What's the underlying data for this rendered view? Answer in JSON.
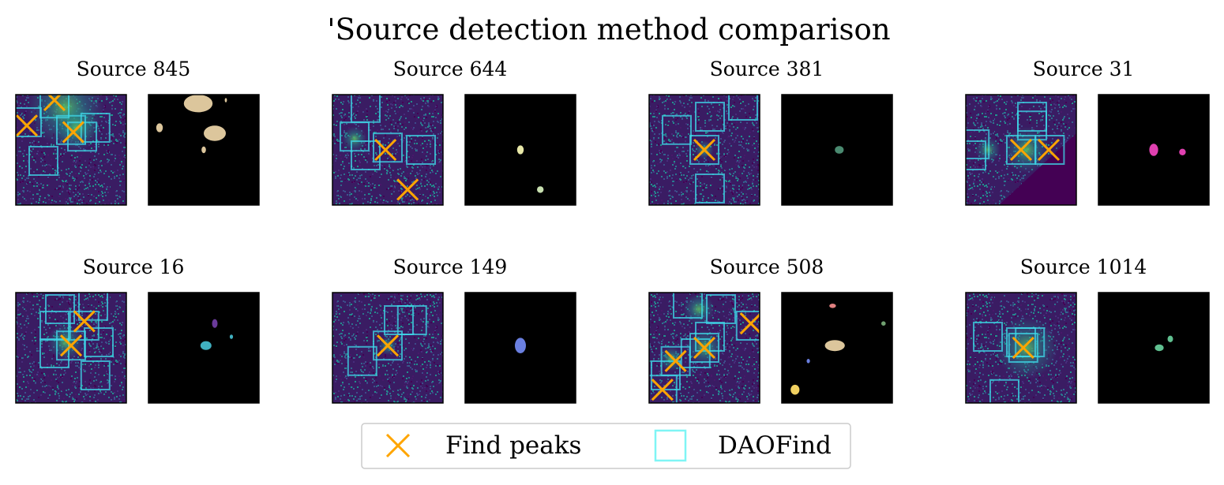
{
  "chart_data": {
    "type": "image-grid",
    "title": "'Source detection method comparison",
    "legend": {
      "placement": "bottom-center",
      "entries": [
        {
          "label": "Find peaks",
          "marker": "x",
          "color": "#ffa500"
        },
        {
          "label": "DAOFind",
          "marker": "square",
          "color": "#7ff5f5"
        }
      ]
    },
    "colormap": "viridis",
    "mask_background": "#000000",
    "panels": [
      {
        "name": "Source 845",
        "peaks": [
          [
            0.1,
            0.28
          ],
          [
            0.52,
            0.34
          ],
          [
            0.35,
            0.05
          ]
        ],
        "daofind_boxes": [
          [
            0.1,
            0.25
          ],
          [
            0.5,
            0.32
          ],
          [
            0.35,
            0.08
          ],
          [
            0.6,
            0.38
          ],
          [
            0.25,
            0.6
          ],
          [
            0.72,
            0.3
          ]
        ],
        "glow": [
          [
            0.45,
            0.12,
            0.25
          ],
          [
            0.55,
            0.3,
            0.15
          ]
        ],
        "mask_blobs": [
          [
            0.45,
            0.08,
            0.13,
            0.08,
            "#dcc69c"
          ],
          [
            0.6,
            0.35,
            0.1,
            0.07,
            "#dcc69c"
          ],
          [
            0.1,
            0.3,
            0.03,
            0.04,
            "#dcc69c"
          ],
          [
            0.5,
            0.5,
            0.02,
            0.03,
            "#dcc69c"
          ],
          [
            0.7,
            0.05,
            0.01,
            0.02,
            "#dcc69c"
          ]
        ]
      },
      {
        "name": "Source 644",
        "peaks": [
          [
            0.48,
            0.5
          ],
          [
            0.68,
            0.86
          ]
        ],
        "daofind_boxes": [
          [
            0.2,
            0.38
          ],
          [
            0.3,
            0.55
          ],
          [
            0.5,
            0.48
          ],
          [
            0.8,
            0.5
          ],
          [
            0.3,
            0.12
          ]
        ],
        "glow": [
          [
            0.2,
            0.4,
            0.08
          ]
        ],
        "mask_blobs": [
          [
            0.5,
            0.5,
            0.03,
            0.04,
            "#e8e8a8"
          ],
          [
            0.68,
            0.86,
            0.03,
            0.03,
            "#c8e0b0"
          ]
        ]
      },
      {
        "name": "Source 381",
        "peaks": [
          [
            0.5,
            0.5
          ]
        ],
        "daofind_boxes": [
          [
            0.5,
            0.5
          ],
          [
            0.25,
            0.32
          ],
          [
            0.55,
            0.2
          ],
          [
            0.85,
            0.1
          ],
          [
            0.55,
            0.85
          ]
        ],
        "glow": [
          [
            0.5,
            0.5,
            0.06
          ]
        ],
        "mask_blobs": [
          [
            0.52,
            0.5,
            0.04,
            0.035,
            "#4a8a70"
          ]
        ]
      },
      {
        "name": "Source 31",
        "peaks": [
          [
            0.5,
            0.5
          ],
          [
            0.75,
            0.5
          ]
        ],
        "daofind_boxes": [
          [
            0.5,
            0.5
          ],
          [
            0.76,
            0.5
          ],
          [
            0.6,
            0.2
          ],
          [
            0.6,
            0.28
          ],
          [
            0.08,
            0.45
          ],
          [
            0.05,
            0.55
          ]
        ],
        "glow": [
          [
            0.55,
            0.5,
            0.15
          ],
          [
            0.2,
            0.5,
            0.08
          ]
        ],
        "diagonal_cut": true,
        "mask_blobs": [
          [
            0.5,
            0.5,
            0.04,
            0.055,
            "#e040b0"
          ],
          [
            0.76,
            0.52,
            0.03,
            0.03,
            "#e040b0"
          ]
        ]
      },
      {
        "name": "Source 16",
        "peaks": [
          [
            0.62,
            0.26
          ],
          [
            0.5,
            0.48
          ]
        ],
        "daofind_boxes": [
          [
            0.62,
            0.3
          ],
          [
            0.5,
            0.48
          ],
          [
            0.35,
            0.55
          ],
          [
            0.75,
            0.45
          ],
          [
            0.4,
            0.15
          ],
          [
            0.7,
            0.12
          ],
          [
            0.35,
            0.3
          ],
          [
            0.72,
            0.75
          ]
        ],
        "glow": [
          [
            0.45,
            0.45,
            0.12
          ]
        ],
        "mask_blobs": [
          [
            0.6,
            0.28,
            0.025,
            0.04,
            "#6a3a9a"
          ],
          [
            0.52,
            0.48,
            0.05,
            0.04,
            "#40b0c0"
          ],
          [
            0.75,
            0.4,
            0.015,
            0.02,
            "#40b0c0"
          ]
        ]
      },
      {
        "name": "Source 149",
        "peaks": [
          [
            0.5,
            0.48
          ]
        ],
        "daofind_boxes": [
          [
            0.5,
            0.48
          ],
          [
            0.6,
            0.25
          ],
          [
            0.72,
            0.25
          ],
          [
            0.27,
            0.62
          ]
        ],
        "glow": [
          [
            0.5,
            0.48,
            0.06
          ]
        ],
        "mask_blobs": [
          [
            0.5,
            0.48,
            0.05,
            0.07,
            "#6a7fe0"
          ]
        ]
      },
      {
        "name": "Source 508",
        "peaks": [
          [
            0.5,
            0.5
          ],
          [
            0.24,
            0.62
          ],
          [
            0.12,
            0.88
          ],
          [
            0.92,
            0.28
          ]
        ],
        "daofind_boxes": [
          [
            0.5,
            0.5
          ],
          [
            0.42,
            0.55
          ],
          [
            0.24,
            0.62
          ],
          [
            0.12,
            0.88
          ],
          [
            0.92,
            0.3
          ],
          [
            0.35,
            0.1
          ],
          [
            0.65,
            0.15
          ],
          [
            0.15,
            0.75
          ],
          [
            0.55,
            0.4
          ]
        ],
        "glow": [
          [
            0.45,
            0.15,
            0.1
          ],
          [
            0.5,
            0.5,
            0.12
          ],
          [
            0.2,
            0.6,
            0.08
          ]
        ],
        "mask_blobs": [
          [
            0.48,
            0.48,
            0.09,
            0.05,
            "#dcc69c"
          ],
          [
            0.46,
            0.12,
            0.03,
            0.02,
            "#e08080"
          ],
          [
            0.92,
            0.28,
            0.02,
            0.02,
            "#70a070"
          ],
          [
            0.24,
            0.62,
            0.015,
            0.02,
            "#6a7fe0"
          ],
          [
            0.12,
            0.88,
            0.04,
            0.045,
            "#f0d060"
          ]
        ]
      },
      {
        "name": "Source 1014",
        "peaks": [
          [
            0.52,
            0.5
          ]
        ],
        "daofind_boxes": [
          [
            0.52,
            0.5
          ],
          [
            0.58,
            0.45
          ],
          [
            0.5,
            0.45
          ],
          [
            0.2,
            0.4
          ],
          [
            0.35,
            0.92
          ]
        ],
        "glow": [
          [
            0.55,
            0.5,
            0.2
          ]
        ],
        "mask_blobs": [
          [
            0.55,
            0.5,
            0.04,
            0.03,
            "#60c090"
          ],
          [
            0.65,
            0.42,
            0.025,
            0.03,
            "#60c090"
          ]
        ]
      }
    ]
  }
}
